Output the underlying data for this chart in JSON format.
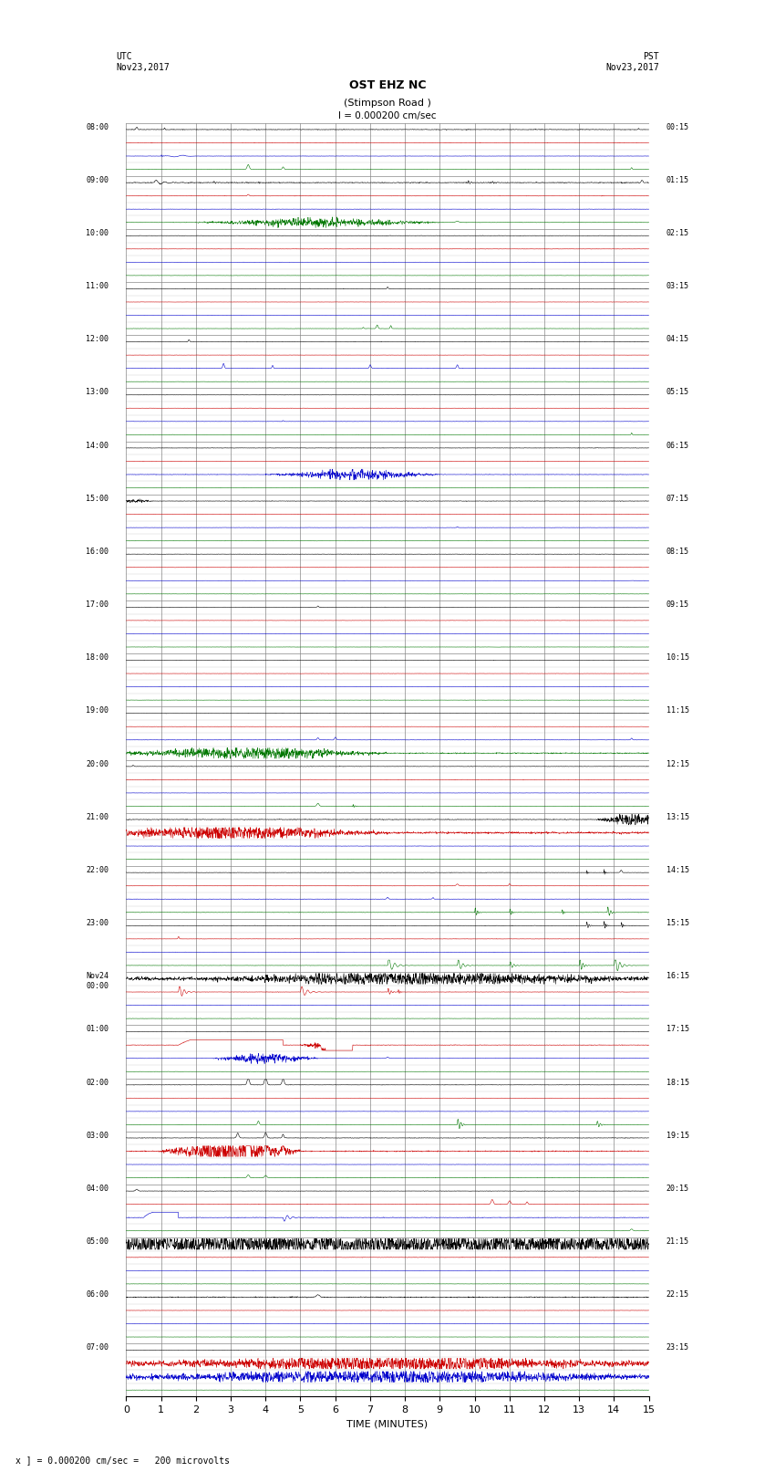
{
  "title_line1": "OST EHZ NC",
  "title_line2": "(Stimpson Road )",
  "title_line3": "I = 0.000200 cm/sec",
  "utc_label": "UTC\nNov23,2017",
  "pst_label": "PST\nNov23,2017",
  "xlabel": "TIME (MINUTES)",
  "footer": "x ] = 0.000200 cm/sec =   200 microvolts",
  "xlim": [
    0,
    15
  ],
  "xticks": [
    0,
    1,
    2,
    3,
    4,
    5,
    6,
    7,
    8,
    9,
    10,
    11,
    12,
    13,
    14,
    15
  ],
  "background_color": "#ffffff",
  "colors": {
    "k": "#000000",
    "r": "#cc0000",
    "b": "#0000cc",
    "g": "#007700"
  },
  "utc_times": [
    "08:00",
    "09:00",
    "10:00",
    "11:00",
    "12:00",
    "13:00",
    "14:00",
    "15:00",
    "16:00",
    "17:00",
    "18:00",
    "19:00",
    "20:00",
    "21:00",
    "22:00",
    "23:00",
    "Nov24\n00:00",
    "01:00",
    "02:00",
    "03:00",
    "04:00",
    "05:00",
    "06:00",
    "07:00"
  ],
  "pst_times": [
    "00:15",
    "01:15",
    "02:15",
    "03:15",
    "04:15",
    "05:15",
    "06:15",
    "07:15",
    "08:15",
    "09:15",
    "10:15",
    "11:15",
    "12:15",
    "13:15",
    "14:15",
    "15:15",
    "16:15",
    "17:15",
    "18:15",
    "19:15",
    "20:15",
    "21:15",
    "22:15",
    "23:15"
  ],
  "n_hours": 24,
  "n_subtraces": 4,
  "n_points": 1800,
  "figsize": [
    8.5,
    16.13
  ],
  "dpi": 100
}
